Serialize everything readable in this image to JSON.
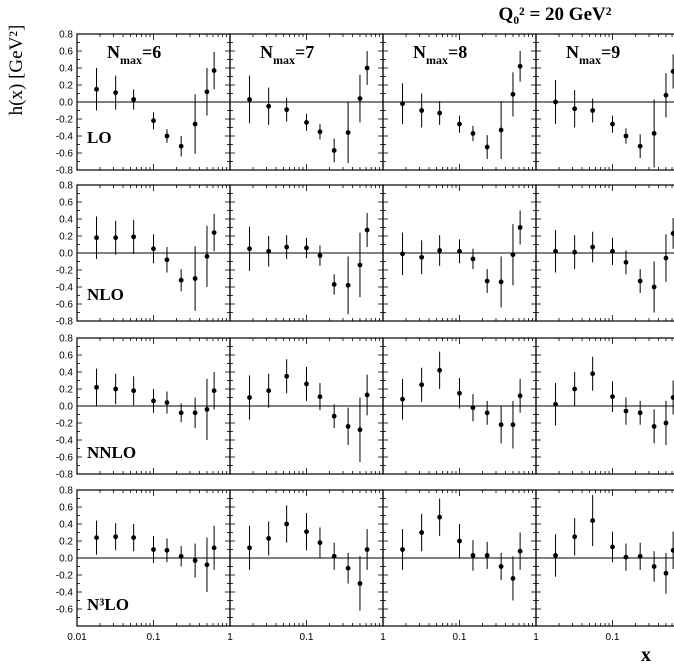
{
  "figure": {
    "top_label": "Q₀² = 20 GeV²",
    "ylabel": "h(x) [GeV²]",
    "xlabel": "x"
  },
  "colors": {
    "ink": "#000000",
    "background": "#ffffff"
  },
  "chart_data": {
    "type": "scatter",
    "xscale": "log",
    "xlim": [
      0.01,
      1
    ],
    "ylim": [
      -0.8,
      0.8
    ],
    "xticks": [
      "0.01",
      "0.1",
      "1"
    ],
    "yticks": [
      "-0.8",
      "-0.6",
      "-0.4",
      "-0.2",
      "0.0",
      "0.2",
      "0.4",
      "0.6",
      "0.8"
    ],
    "yticks_bottom_row": [
      "-0.6",
      "-0.4",
      "-0.2",
      "0.0",
      "0.2",
      "0.4",
      "0.6",
      "0.8"
    ],
    "x": [
      0.018,
      0.032,
      0.055,
      0.1,
      0.15,
      0.23,
      0.35,
      0.5,
      0.62
    ],
    "columns": [
      {
        "label": "N",
        "sub": "max",
        "value": "=6"
      },
      {
        "label": "N",
        "sub": "max",
        "value": "=7"
      },
      {
        "label": "N",
        "sub": "max",
        "value": "=8"
      },
      {
        "label": "N",
        "sub": "max",
        "value": "=9"
      }
    ],
    "rows": [
      {
        "label": "LO",
        "label_pos": "top"
      },
      {
        "label": "NLO",
        "label_pos": "middle"
      },
      {
        "label": "NNLO",
        "label_pos": "lower"
      },
      {
        "label": "N³LO",
        "label_pos": "lower"
      }
    ],
    "panels": [
      [
        {
          "y": [
            0.15,
            0.11,
            0.03,
            -0.22,
            -0.4,
            -0.52,
            -0.26,
            0.12,
            0.37
          ],
          "err": [
            0.25,
            0.2,
            0.12,
            0.1,
            0.08,
            0.12,
            0.35,
            0.28,
            0.22
          ]
        },
        {
          "y": [
            0.03,
            -0.05,
            -0.09,
            -0.24,
            -0.35,
            -0.57,
            -0.36,
            0.04,
            0.4
          ],
          "err": [
            0.28,
            0.22,
            0.14,
            0.1,
            0.09,
            0.14,
            0.36,
            0.28,
            0.2
          ]
        },
        {
          "y": [
            -0.02,
            -0.1,
            -0.13,
            -0.26,
            -0.37,
            -0.53,
            -0.33,
            0.09,
            0.42
          ],
          "err": [
            0.24,
            0.2,
            0.14,
            0.1,
            0.09,
            0.14,
            0.34,
            0.26,
            0.18
          ]
        },
        {
          "y": [
            0.0,
            -0.08,
            -0.1,
            -0.26,
            -0.4,
            -0.52,
            -0.37,
            0.08,
            0.36
          ],
          "err": [
            0.26,
            0.22,
            0.14,
            0.1,
            0.09,
            0.14,
            0.4,
            0.26,
            0.2
          ]
        }
      ],
      [
        {
          "y": [
            0.18,
            0.18,
            0.19,
            0.05,
            -0.08,
            -0.32,
            -0.3,
            -0.04,
            0.24
          ],
          "err": [
            0.25,
            0.2,
            0.2,
            0.17,
            0.15,
            0.13,
            0.38,
            0.36,
            0.22
          ]
        },
        {
          "y": [
            0.05,
            0.02,
            0.07,
            0.06,
            -0.03,
            -0.37,
            -0.38,
            -0.14,
            0.27
          ],
          "err": [
            0.26,
            0.18,
            0.14,
            0.12,
            0.12,
            0.12,
            0.34,
            0.38,
            0.2
          ]
        },
        {
          "y": [
            -0.01,
            -0.05,
            0.03,
            0.02,
            -0.07,
            -0.33,
            -0.34,
            -0.02,
            0.3
          ],
          "err": [
            0.25,
            0.2,
            0.18,
            0.14,
            0.12,
            0.14,
            0.3,
            0.36,
            0.2
          ]
        },
        {
          "y": [
            0.02,
            0.01,
            0.07,
            0.02,
            -0.11,
            -0.33,
            -0.4,
            -0.06,
            0.23
          ],
          "err": [
            0.25,
            0.2,
            0.18,
            0.16,
            0.14,
            0.14,
            0.3,
            0.28,
            0.18
          ]
        }
      ],
      [
        {
          "y": [
            0.22,
            0.2,
            0.18,
            0.06,
            0.04,
            -0.08,
            -0.08,
            -0.04,
            0.18
          ],
          "err": [
            0.22,
            0.18,
            0.17,
            0.14,
            0.13,
            0.11,
            0.18,
            0.36,
            0.22
          ]
        },
        {
          "y": [
            0.1,
            0.18,
            0.35,
            0.26,
            0.11,
            -0.12,
            -0.24,
            -0.28,
            0.13
          ],
          "err": [
            0.26,
            0.2,
            0.2,
            0.2,
            0.16,
            0.14,
            0.22,
            0.38,
            0.24
          ]
        },
        {
          "y": [
            0.08,
            0.25,
            0.42,
            0.15,
            -0.02,
            -0.08,
            -0.22,
            -0.22,
            0.12
          ],
          "err": [
            0.24,
            0.2,
            0.22,
            0.18,
            0.16,
            0.14,
            0.22,
            0.28,
            0.2
          ]
        },
        {
          "y": [
            0.02,
            0.2,
            0.38,
            0.11,
            -0.06,
            -0.08,
            -0.24,
            -0.2,
            0.1
          ],
          "err": [
            0.25,
            0.2,
            0.2,
            0.18,
            0.16,
            0.14,
            0.2,
            0.26,
            0.2
          ]
        }
      ],
      [
        {
          "y": [
            0.24,
            0.25,
            0.24,
            0.1,
            0.09,
            0.02,
            -0.03,
            -0.08,
            0.12
          ],
          "err": [
            0.2,
            0.16,
            0.16,
            0.16,
            0.14,
            0.12,
            0.2,
            0.32,
            0.26
          ]
        },
        {
          "y": [
            0.12,
            0.23,
            0.4,
            0.31,
            0.18,
            0.02,
            -0.12,
            -0.3,
            0.1
          ],
          "err": [
            0.26,
            0.2,
            0.22,
            0.22,
            0.18,
            0.16,
            0.18,
            0.32,
            0.24
          ]
        },
        {
          "y": [
            0.1,
            0.3,
            0.48,
            0.2,
            0.03,
            0.03,
            -0.1,
            -0.24,
            0.08
          ],
          "err": [
            0.24,
            0.22,
            0.22,
            0.2,
            0.18,
            0.16,
            0.16,
            0.26,
            0.22
          ]
        },
        {
          "y": [
            0.03,
            0.25,
            0.44,
            0.13,
            0.01,
            0.02,
            -0.1,
            -0.18,
            0.09
          ],
          "err": [
            0.25,
            0.22,
            0.3,
            0.18,
            0.16,
            0.16,
            0.18,
            0.24,
            0.22
          ]
        }
      ]
    ]
  }
}
